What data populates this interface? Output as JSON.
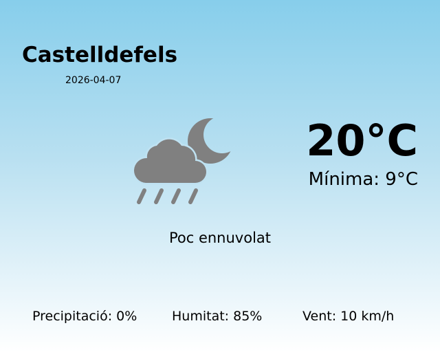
{
  "location": {
    "city": "Castelldefels",
    "date": "2026-04-07"
  },
  "weather": {
    "icon": "cloud-moon-rain-icon",
    "icon_color": "#808080",
    "temperature": "20°C",
    "minimum": "Mínima: 9°C",
    "description": "Poc ennuvolat"
  },
  "stats": {
    "precipitation": "Precipitació: 0%",
    "humidity": "Humitat: 85%",
    "wind": "Vent: 10 km/h"
  }
}
